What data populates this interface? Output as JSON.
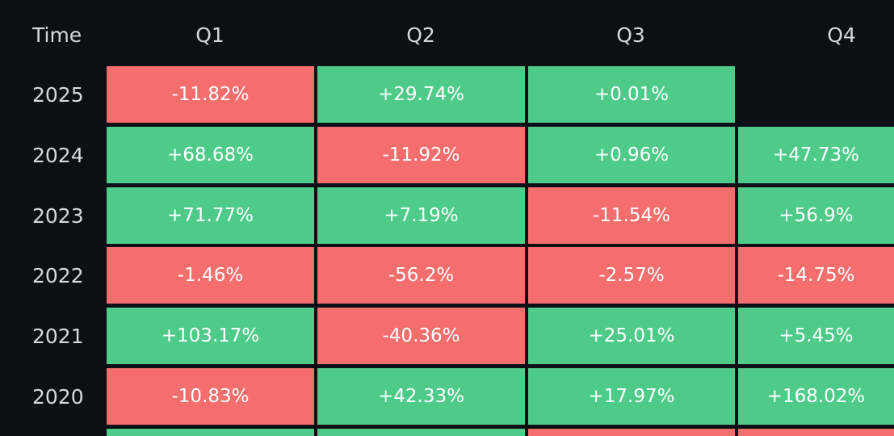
{
  "chart_data": {
    "type": "heatmap",
    "corner_label": "Time",
    "columns": [
      "Q1",
      "Q2",
      "Q3",
      "Q4"
    ],
    "rows": [
      {
        "year": "2025",
        "values": [
          "-11.82%",
          "+29.74%",
          "+0.01%",
          null
        ]
      },
      {
        "year": "2024",
        "values": [
          "+68.68%",
          "-11.92%",
          "+0.96%",
          "+47.73%"
        ]
      },
      {
        "year": "2023",
        "values": [
          "+71.77%",
          "+7.19%",
          "-11.54%",
          "+56.9%"
        ]
      },
      {
        "year": "2022",
        "values": [
          "-1.46%",
          "-56.2%",
          "-2.57%",
          "-14.75%"
        ]
      },
      {
        "year": "2021",
        "values": [
          "+103.17%",
          "-40.36%",
          "+25.01%",
          "+5.45%"
        ]
      },
      {
        "year": "2020",
        "values": [
          "-10.83%",
          "+42.33%",
          "+17.97%",
          "+168.02%"
        ]
      }
    ],
    "partial_next_row_signs": [
      "+",
      "+",
      "-",
      "-"
    ],
    "colors": {
      "positive": "#4fcb89",
      "negative": "#f46e6e",
      "background": "#0d0f16",
      "text": "#ffffff",
      "label": "#d6d8de"
    }
  }
}
